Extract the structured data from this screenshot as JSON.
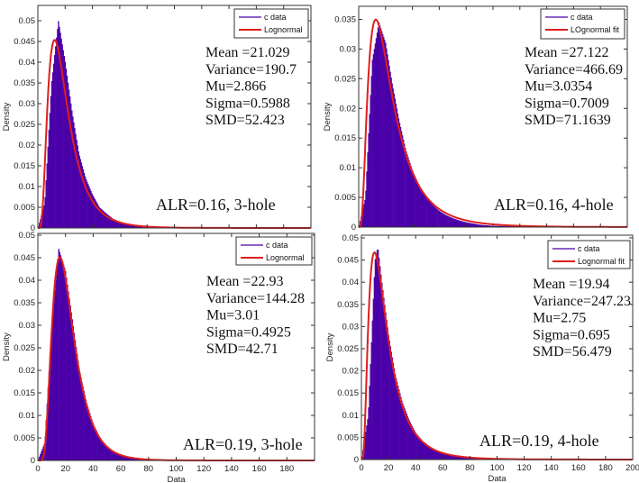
{
  "colors": {
    "histogram": "#4B00A8",
    "fit": "#E01E1E",
    "axes": "#333333"
  },
  "chart_data": [
    {
      "type": "bar+line",
      "ylabel": "Density",
      "xlabel": "",
      "xlim": [
        0,
        200
      ],
      "ylim": [
        0,
        0.0537
      ],
      "yticks": [
        "0",
        "0.005",
        "0.01",
        "0.015",
        "0.02",
        "0.025",
        "0.03",
        "0.035",
        "0.04",
        "0.045",
        "0.05"
      ],
      "xticks": [],
      "legend": {
        "placement": "top-right",
        "entries": [
          "c data",
          "Lognormal"
        ]
      },
      "stats": [
        "Mean =21.029",
        "Variance=190.7",
        "Mu=2.866",
        "Sigma=0.5988",
        "SMD=52.423"
      ],
      "annotation": "ALR=0.16, 3-hole",
      "fit": {
        "distribution": "lognormal",
        "mu": 2.866,
        "sigma": 0.5988
      },
      "histogram": {
        "x": [
          0,
          5,
          10,
          15,
          20,
          25,
          30,
          35,
          40,
          45,
          50,
          55,
          60,
          65,
          70,
          75,
          80,
          90,
          100,
          200
        ],
        "y": [
          0,
          0.006,
          0.035,
          0.05,
          0.04,
          0.028,
          0.018,
          0.012,
          0.008,
          0.005,
          0.0035,
          0.0022,
          0.0015,
          0.001,
          0.0007,
          0.0005,
          0.0003,
          0.0001,
          0,
          0
        ]
      }
    },
    {
      "type": "bar+line",
      "ylabel": "Density",
      "xlabel": "",
      "xlim": [
        0,
        200
      ],
      "ylim": [
        0,
        0.0372
      ],
      "yticks": [
        "0",
        "0.005",
        "0.01",
        "0.015",
        "0.02",
        "0.025",
        "0.03",
        "0.035"
      ],
      "xticks": [],
      "legend": {
        "placement": "top-right",
        "entries": [
          "c data",
          "LOgnormal fit"
        ]
      },
      "stats": [
        "Mean =27.122",
        "Variance=466.69",
        "Mu=3.0354",
        "Sigma=0.7009",
        "SMD=71.1639"
      ],
      "annotation": "ALR=0.16, 4-hole",
      "fit": {
        "distribution": "lognormal",
        "mu": 3.0354,
        "sigma": 0.7009
      },
      "histogram": {
        "x": [
          0,
          5,
          10,
          15,
          20,
          25,
          30,
          35,
          40,
          45,
          50,
          55,
          60,
          65,
          70,
          75,
          80,
          90,
          100,
          200
        ],
        "y": [
          0,
          0.005,
          0.028,
          0.0345,
          0.031,
          0.024,
          0.018,
          0.013,
          0.0095,
          0.007,
          0.005,
          0.0037,
          0.0027,
          0.002,
          0.0015,
          0.0011,
          0.0008,
          0.0004,
          0.0002,
          0
        ]
      }
    },
    {
      "type": "bar+line",
      "ylabel": "Density",
      "xlabel": "Data",
      "xlim": [
        0,
        200
      ],
      "ylim": [
        0,
        0.0504
      ],
      "yticks": [
        "0",
        "0.005",
        "0.01",
        "0.015",
        "0.02",
        "0.025",
        "0.03",
        "0.035",
        "0.04",
        "0.045",
        "0.05"
      ],
      "xticks": [
        "0",
        "20",
        "40",
        "60",
        "80",
        "100",
        "120",
        "140",
        "160",
        "180"
      ],
      "legend": {
        "placement": "top-right",
        "entries": [
          "c data",
          "Lognormal"
        ]
      },
      "stats": [
        "Mean =22.93",
        "Variance=144.28",
        "Mu=3.01",
        "Sigma=0.4925",
        "SMD=42.71"
      ],
      "annotation": "ALR=0.19, 3-hole",
      "fit": {
        "distribution": "lognormal",
        "mu": 3.01,
        "sigma": 0.4925
      },
      "histogram": {
        "x": [
          0,
          5,
          10,
          15,
          20,
          25,
          30,
          35,
          40,
          45,
          50,
          55,
          60,
          65,
          70,
          80,
          90,
          100,
          200
        ],
        "y": [
          0,
          0.004,
          0.03,
          0.047,
          0.042,
          0.031,
          0.02,
          0.013,
          0.008,
          0.005,
          0.003,
          0.002,
          0.0012,
          0.0008,
          0.0005,
          0.0002,
          0.0001,
          0,
          0
        ]
      }
    },
    {
      "type": "bar+line",
      "ylabel": "Density",
      "xlabel": "Data",
      "xlim": [
        0,
        200
      ],
      "ylim": [
        0,
        0.0506
      ],
      "yticks": [
        "0",
        "0.005",
        "0.01",
        "0.015",
        "0.02",
        "0.025",
        "0.03",
        "0.035",
        "0.04",
        "0.045",
        "0.05"
      ],
      "xticks": [
        "0",
        "20",
        "40",
        "60",
        "80",
        "100",
        "120",
        "140",
        "160",
        "180",
        "200"
      ],
      "legend": {
        "placement": "top-right",
        "entries": [
          "c data",
          "Lognormal fit"
        ]
      },
      "stats": [
        "Mean =19.94",
        "Variance=247.23",
        "Mu=2.75",
        "Sigma=0.695",
        "SMD=56.479"
      ],
      "annotation": "ALR=0.19, 4-hole",
      "fit": {
        "distribution": "lognormal",
        "mu": 2.75,
        "sigma": 0.695
      },
      "histogram": {
        "x": [
          0,
          5,
          10,
          12,
          15,
          20,
          25,
          30,
          35,
          40,
          45,
          50,
          55,
          60,
          65,
          70,
          80,
          90,
          100,
          200
        ],
        "y": [
          0,
          0.01,
          0.045,
          0.048,
          0.04,
          0.028,
          0.019,
          0.013,
          0.009,
          0.006,
          0.0042,
          0.003,
          0.002,
          0.0015,
          0.0011,
          0.0008,
          0.0004,
          0.0002,
          0.0001,
          0
        ]
      }
    }
  ]
}
